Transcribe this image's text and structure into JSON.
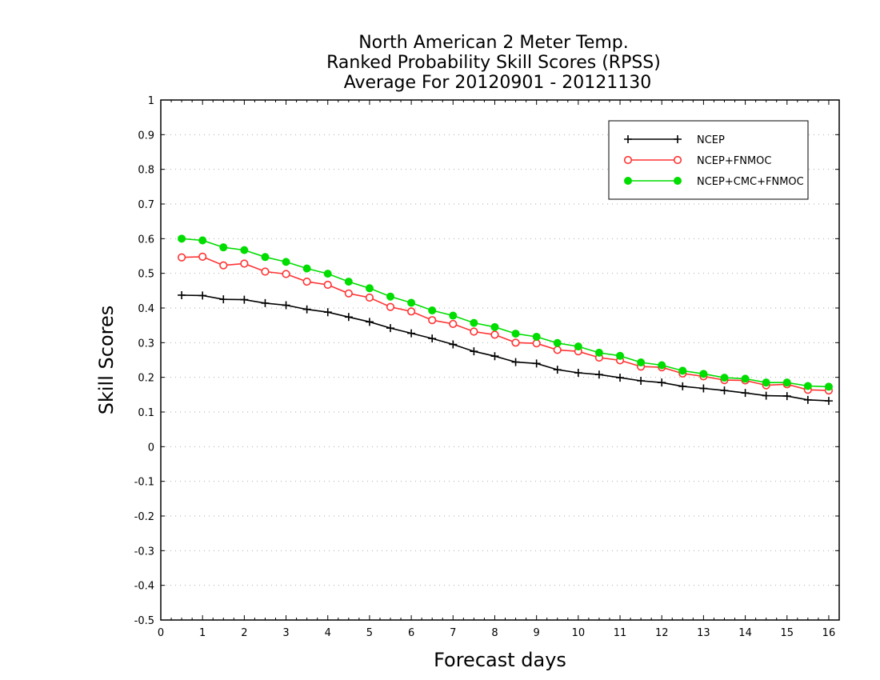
{
  "chart_data": {
    "type": "line",
    "title_lines": [
      "North American 2 Meter Temp.",
      "Ranked Probability Skill Scores (RPSS)",
      "Average For 20120901 - 20121130"
    ],
    "xlabel": "Forecast days",
    "ylabel": "Skill Scores",
    "xlim": [
      0,
      16.25
    ],
    "ylim": [
      -0.5,
      1
    ],
    "x_ticks": [
      "0",
      "1",
      "2",
      "3",
      "4",
      "5",
      "6",
      "7",
      "8",
      "9",
      "10",
      "11",
      "12",
      "13",
      "14",
      "15",
      "16"
    ],
    "y_ticks": [
      "1",
      "0.9",
      "0.8",
      "0.7",
      "0.6",
      "0.5",
      "0.4",
      "0.3",
      "0.2",
      "0.1",
      "0",
      "-0.1",
      "-0.2",
      "-0.3",
      "-0.4",
      "-0.5"
    ],
    "grid": "horizontal dotted",
    "legend_position": "top-right",
    "x": [
      0.5,
      1,
      1.5,
      2,
      2.5,
      3,
      3.5,
      4,
      4.5,
      5,
      5.5,
      6,
      6.5,
      7,
      7.5,
      8,
      8.5,
      9,
      9.5,
      10,
      10.5,
      11,
      11.5,
      12,
      12.5,
      13,
      13.5,
      14,
      14.5,
      15,
      15.5,
      16
    ],
    "series": [
      {
        "name": "NCEP",
        "color": "#000000",
        "marker": "plus",
        "values": [
          0.437,
          0.436,
          0.425,
          0.424,
          0.414,
          0.408,
          0.396,
          0.388,
          0.374,
          0.36,
          0.342,
          0.327,
          0.312,
          0.295,
          0.275,
          0.261,
          0.244,
          0.24,
          0.222,
          0.213,
          0.208,
          0.199,
          0.19,
          0.185,
          0.174,
          0.168,
          0.162,
          0.155,
          0.147,
          0.146,
          0.135,
          0.132
        ]
      },
      {
        "name": "NCEP+FNMOC",
        "color": "#ff3333",
        "marker": "open-circle",
        "values": [
          0.546,
          0.548,
          0.523,
          0.528,
          0.505,
          0.498,
          0.476,
          0.467,
          0.442,
          0.43,
          0.403,
          0.39,
          0.365,
          0.354,
          0.332,
          0.323,
          0.3,
          0.298,
          0.279,
          0.275,
          0.257,
          0.249,
          0.231,
          0.229,
          0.211,
          0.203,
          0.192,
          0.191,
          0.177,
          0.18,
          0.164,
          0.162
        ]
      },
      {
        "name": "NCEP+CMC+FNMOC",
        "color": "#00dd00",
        "marker": "filled-circle",
        "values": [
          0.6,
          0.595,
          0.575,
          0.567,
          0.547,
          0.533,
          0.514,
          0.499,
          0.476,
          0.457,
          0.433,
          0.415,
          0.393,
          0.378,
          0.357,
          0.345,
          0.326,
          0.317,
          0.299,
          0.289,
          0.271,
          0.262,
          0.243,
          0.235,
          0.219,
          0.21,
          0.199,
          0.196,
          0.185,
          0.185,
          0.175,
          0.173
        ]
      }
    ]
  }
}
